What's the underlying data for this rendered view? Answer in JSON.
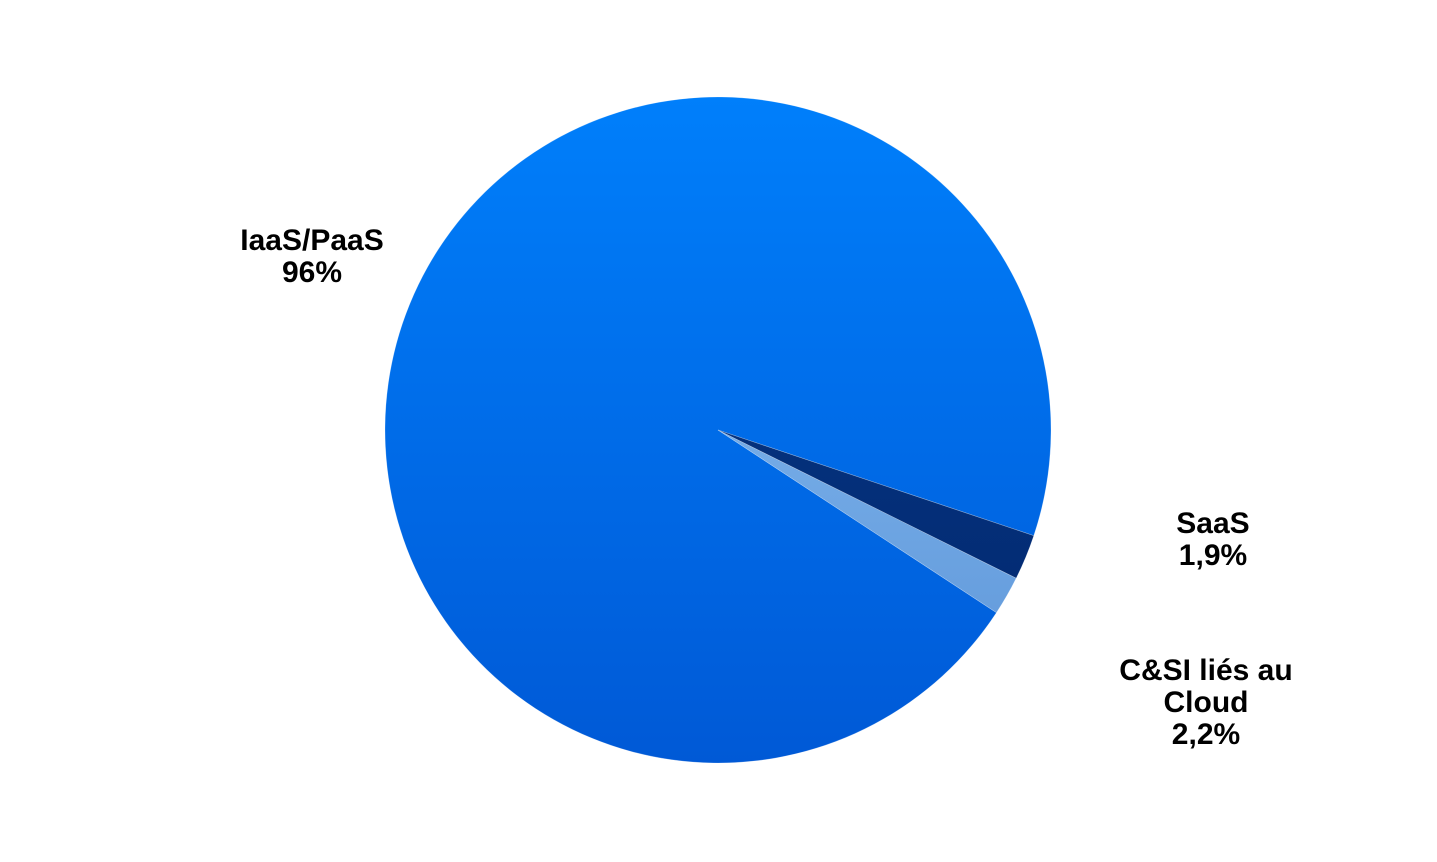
{
  "chart_data": {
    "type": "pie",
    "title": "",
    "slices": [
      {
        "label_lines": [
          "IaaS/PaaS",
          "96%"
        ],
        "value": 95.9,
        "color_top": "#007ffb",
        "color_bottom": "#0059d6"
      },
      {
        "label_lines": [
          "SaaS",
          "1,9%"
        ],
        "value": 1.9,
        "color_top": "#8ec4f8",
        "color_bottom": "#5b93d6"
      },
      {
        "label_lines": [
          "C&SI liés au",
          "Cloud",
          "2,2%"
        ],
        "value": 2.2,
        "color_top": "#0a3c8c",
        "color_bottom": "#00266c"
      }
    ],
    "start_angle_deg": 18.5,
    "direction": "counterclockwise",
    "legend": "none"
  }
}
